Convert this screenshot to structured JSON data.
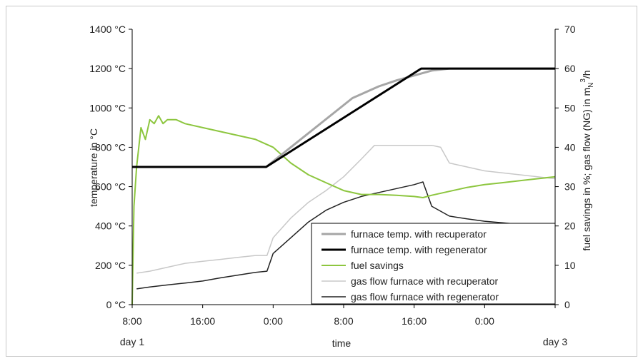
{
  "chart_data": {
    "type": "line",
    "title": "",
    "xlabel": "time",
    "ylabel_left": "temperature in °C",
    "ylabel_right": "fuel savings in %; gas flow (NG) in m",
    "ylabel_right_sub": "N",
    "ylabel_right_sup": "3",
    "ylabel_right_tail": "/h",
    "x_unit": "hours from day 1 00:00",
    "xlim": [
      8,
      56
    ],
    "x_ticks": [
      {
        "x": 8,
        "label": "8:00"
      },
      {
        "x": 16,
        "label": "16:00"
      },
      {
        "x": 24,
        "label": "0:00"
      },
      {
        "x": 32,
        "label": "8:00"
      },
      {
        "x": 40,
        "label": "16:00"
      },
      {
        "x": 48,
        "label": "0:00"
      }
    ],
    "x_day_labels": [
      {
        "x": 8,
        "label": "day 1"
      },
      {
        "x": 56,
        "label": "day 3"
      }
    ],
    "ylim_left": [
      0,
      1400
    ],
    "ylim_right": [
      0,
      70
    ],
    "y_left_ticks": [
      "0 °C",
      "200 °C",
      "400 °C",
      "600 °C",
      "800 °C",
      "1000 °C",
      "1200 °C",
      "1400 °C"
    ],
    "y_left_values": [
      0,
      200,
      400,
      600,
      800,
      1000,
      1200,
      1400
    ],
    "y_right_ticks": [
      "0",
      "10",
      "20",
      "30",
      "40",
      "50",
      "60",
      "70"
    ],
    "y_right_values": [
      0,
      10,
      20,
      30,
      40,
      50,
      60,
      70
    ],
    "grid": false,
    "legend_position": "bottom-right",
    "series": [
      {
        "name": "furnace temp. with recuperator",
        "axis": "left",
        "color": "#a6a6a6",
        "width": 3,
        "x": [
          8,
          23.2,
          33,
          36,
          38,
          40,
          42,
          44,
          56
        ],
        "y": [
          700,
          700,
          1050,
          1110,
          1140,
          1165,
          1190,
          1200,
          1200
        ]
      },
      {
        "name": "furnace temp. with regenerator",
        "axis": "left",
        "color": "#000000",
        "width": 3,
        "x": [
          8,
          23.2,
          40.8,
          56
        ],
        "y": [
          700,
          700,
          1200,
          1200
        ]
      },
      {
        "name": "fuel savings",
        "axis": "right",
        "color": "#8dc63f",
        "width": 2,
        "x": [
          8,
          8.2,
          8.5,
          9,
          9.5,
          10,
          10.5,
          11,
          11.5,
          12,
          13,
          14,
          16,
          18,
          20,
          22,
          23,
          24,
          25,
          26,
          28,
          30,
          32,
          34,
          36,
          38,
          40,
          41,
          42,
          44,
          46,
          48,
          50,
          52,
          54,
          56
        ],
        "y": [
          0,
          25,
          35,
          45,
          42,
          47,
          46,
          48,
          46,
          47,
          47,
          46,
          45,
          44,
          43,
          42,
          41,
          40,
          38,
          36,
          33,
          31,
          29,
          28,
          28,
          27.8,
          27.5,
          27.2,
          27.8,
          28.8,
          29.8,
          30.5,
          31,
          31.5,
          32,
          32.5
        ]
      },
      {
        "name": "gas flow furnace with recuperator",
        "axis": "right",
        "color": "#c8c8c8",
        "width": 1.5,
        "x": [
          8.5,
          10,
          12,
          14,
          16,
          18,
          20,
          22,
          23.3,
          24,
          26,
          28,
          30,
          32,
          34,
          35.5,
          36,
          38,
          40,
          42,
          43,
          44,
          46,
          48,
          50,
          52,
          54,
          56
        ],
        "y": [
          8,
          8.5,
          9.5,
          10.5,
          11,
          11.5,
          12,
          12.5,
          12.5,
          17,
          22,
          26,
          29,
          32.5,
          37,
          40.5,
          40.5,
          40.5,
          40.5,
          40.5,
          40,
          36,
          35,
          34,
          33.5,
          33,
          32.5,
          32
        ]
      },
      {
        "name": "gas flow furnace with regenerator",
        "axis": "right",
        "color": "#222222",
        "width": 1.5,
        "x": [
          8.5,
          10,
          12,
          14,
          16,
          18,
          20,
          22,
          23.3,
          24,
          26,
          28,
          30,
          32,
          34,
          36,
          38,
          40,
          41,
          42,
          44,
          46,
          48,
          50,
          52,
          54,
          56
        ],
        "y": [
          4,
          4.5,
          5,
          5.5,
          6,
          6.8,
          7.5,
          8.2,
          8.5,
          13,
          17,
          21,
          24,
          26,
          27.5,
          28.5,
          29.5,
          30.5,
          31.2,
          25,
          22.5,
          21.8,
          21.2,
          20.8,
          20.4,
          20.1,
          19.8
        ]
      }
    ]
  }
}
